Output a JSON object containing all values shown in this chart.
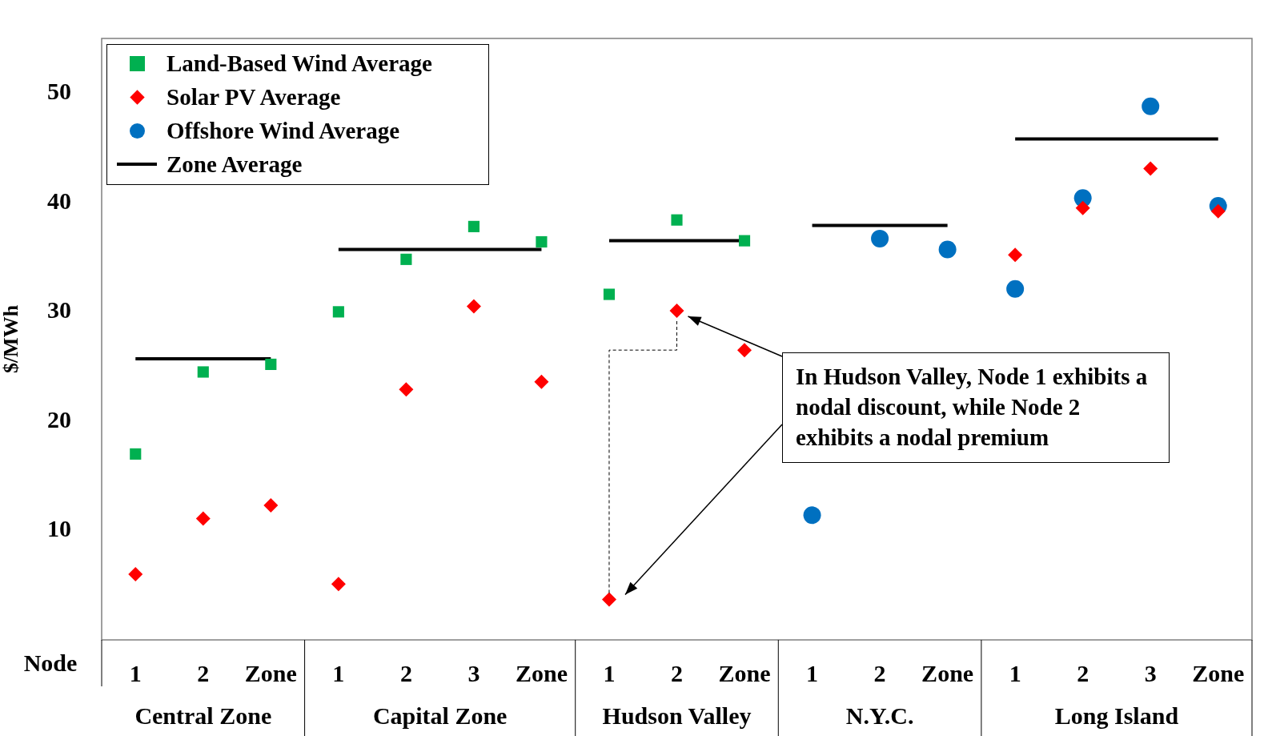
{
  "chart_data": {
    "type": "scatter",
    "ylabel": "$/MWh",
    "xlabel": "Node",
    "categories": [
      "1",
      "2",
      "Zone",
      "1",
      "2",
      "3",
      "Zone",
      "1",
      "2",
      "Zone",
      "1",
      "2",
      "Zone",
      "1",
      "2",
      "3",
      "Zone"
    ],
    "ylim": [
      0,
      55
    ],
    "yticks": [
      10,
      20,
      30,
      40,
      50
    ],
    "legend": "top left",
    "series": [
      {
        "name": "Land-Based Wind Average",
        "color": "#00b050",
        "marker": "square",
        "values": [
          17.0,
          24.5,
          25.2,
          30.0,
          34.8,
          37.8,
          36.4,
          31.6,
          38.4,
          36.5,
          null,
          null,
          null,
          null,
          null,
          null,
          null
        ]
      },
      {
        "name": "Solar PV Average",
        "color": "#ff0000",
        "marker": "diamond",
        "values": [
          6.0,
          11.1,
          12.3,
          5.1,
          22.9,
          30.5,
          23.6,
          3.7,
          30.1,
          26.5,
          null,
          null,
          null,
          35.2,
          39.5,
          43.1,
          39.2
        ]
      },
      {
        "name": "Offshore Wind Average",
        "color": "#0070c0",
        "marker": "circle",
        "values": [
          null,
          null,
          null,
          null,
          null,
          null,
          null,
          null,
          null,
          null,
          11.4,
          36.7,
          35.7,
          32.1,
          40.4,
          48.8,
          39.7
        ]
      },
      {
        "name": "Zone Average",
        "type": "line",
        "color": "#000000",
        "marker": "none",
        "values": [
          25.7,
          25.7,
          25.7,
          35.7,
          35.7,
          35.7,
          35.7,
          36.5,
          36.5,
          36.5,
          37.9,
          37.9,
          37.9,
          45.8,
          45.8,
          45.8,
          45.8
        ]
      }
    ],
    "annotations": [
      "Central Zone",
      "Capital Zone",
      "Hudson Valley",
      "N.Y.C.",
      "Long Island",
      "In Hudson Valley, Node 1 exhibits a nodal discount, while Node 2 exhibits a nodal premium"
    ]
  }
}
